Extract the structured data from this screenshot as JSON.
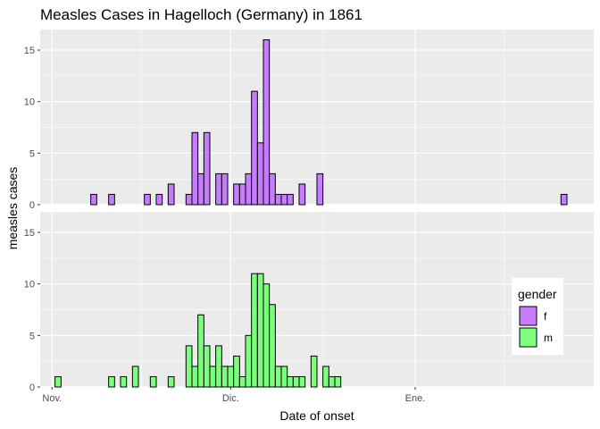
{
  "chart_data": {
    "type": "bar",
    "title": "Measles Cases in Hagelloch (Germany) in 1861",
    "xlabel": "Date of onset",
    "ylabel": "measles cases",
    "x_ticks": [
      "Nov.",
      "Dic.",
      "Ene."
    ],
    "x_tick_dates": [
      "1861-11-01",
      "1861-12-01",
      "1862-01-01"
    ],
    "x_range": [
      "1861-10-30",
      "1862-01-31"
    ],
    "ylim": [
      0,
      17
    ],
    "y_ticks": [
      0,
      5,
      10,
      15
    ],
    "facets": [
      "f",
      "m"
    ],
    "legend": {
      "title": "gender",
      "position": "right",
      "entries": [
        {
          "label": "f",
          "color": "#c77cff"
        },
        {
          "label": "m",
          "color": "#7cff7c"
        }
      ]
    },
    "grid": true,
    "series": [
      {
        "name": "f",
        "color": "#c77cff",
        "points": [
          {
            "date": "1861-11-08",
            "count": 1
          },
          {
            "date": "1861-11-11",
            "count": 1
          },
          {
            "date": "1861-11-17",
            "count": 1
          },
          {
            "date": "1861-11-19",
            "count": 1
          },
          {
            "date": "1861-11-21",
            "count": 2
          },
          {
            "date": "1861-11-24",
            "count": 1
          },
          {
            "date": "1861-11-25",
            "count": 7
          },
          {
            "date": "1861-11-26",
            "count": 3
          },
          {
            "date": "1861-11-27",
            "count": 7
          },
          {
            "date": "1861-11-29",
            "count": 3
          },
          {
            "date": "1861-11-30",
            "count": 3
          },
          {
            "date": "1861-12-02",
            "count": 2
          },
          {
            "date": "1861-12-03",
            "count": 2
          },
          {
            "date": "1861-12-04",
            "count": 3
          },
          {
            "date": "1861-12-05",
            "count": 11
          },
          {
            "date": "1861-12-06",
            "count": 6
          },
          {
            "date": "1861-12-07",
            "count": 16
          },
          {
            "date": "1861-12-08",
            "count": 3
          },
          {
            "date": "1861-12-09",
            "count": 1
          },
          {
            "date": "1861-12-10",
            "count": 1
          },
          {
            "date": "1861-12-11",
            "count": 1
          },
          {
            "date": "1861-12-13",
            "count": 2
          },
          {
            "date": "1861-12-16",
            "count": 3
          },
          {
            "date": "1862-01-26",
            "count": 1
          }
        ]
      },
      {
        "name": "m",
        "color": "#7cff7c",
        "points": [
          {
            "date": "1861-11-02",
            "count": 1
          },
          {
            "date": "1861-11-11",
            "count": 1
          },
          {
            "date": "1861-11-13",
            "count": 1
          },
          {
            "date": "1861-11-15",
            "count": 2
          },
          {
            "date": "1861-11-18",
            "count": 1
          },
          {
            "date": "1861-11-21",
            "count": 1
          },
          {
            "date": "1861-11-24",
            "count": 4
          },
          {
            "date": "1861-11-25",
            "count": 2
          },
          {
            "date": "1861-11-26",
            "count": 7
          },
          {
            "date": "1861-11-27",
            "count": 4
          },
          {
            "date": "1861-11-28",
            "count": 2
          },
          {
            "date": "1861-11-29",
            "count": 4
          },
          {
            "date": "1861-11-30",
            "count": 2
          },
          {
            "date": "1861-12-01",
            "count": 2
          },
          {
            "date": "1861-12-02",
            "count": 3
          },
          {
            "date": "1861-12-03",
            "count": 1
          },
          {
            "date": "1861-12-04",
            "count": 5
          },
          {
            "date": "1861-12-05",
            "count": 11
          },
          {
            "date": "1861-12-06",
            "count": 11
          },
          {
            "date": "1861-12-07",
            "count": 10
          },
          {
            "date": "1861-12-08",
            "count": 8
          },
          {
            "date": "1861-12-09",
            "count": 2
          },
          {
            "date": "1861-12-10",
            "count": 2
          },
          {
            "date": "1861-12-11",
            "count": 1
          },
          {
            "date": "1861-12-12",
            "count": 1
          },
          {
            "date": "1861-12-13",
            "count": 1
          },
          {
            "date": "1861-12-15",
            "count": 3
          },
          {
            "date": "1861-12-17",
            "count": 2
          },
          {
            "date": "1861-12-18",
            "count": 1
          },
          {
            "date": "1861-12-19",
            "count": 1
          }
        ]
      }
    ]
  }
}
